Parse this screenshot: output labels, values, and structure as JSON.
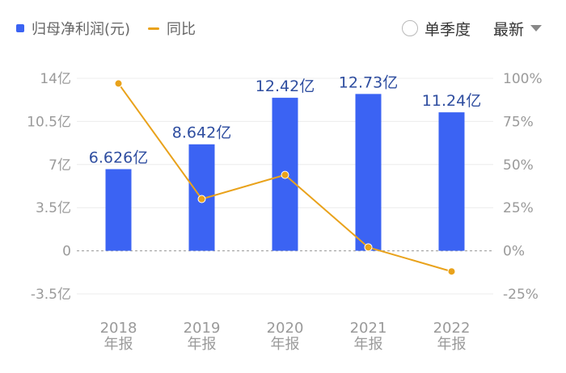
{
  "legend": {
    "bar_label": "归母净利润(元)",
    "line_label": "同比"
  },
  "controls": {
    "quarterly_label": "单季度",
    "latest_label": "最新"
  },
  "colors": {
    "bar": "#3b63f3",
    "line": "#e9a21b",
    "bar_label": "#2f4ea0",
    "axis_text": "#9a9a9a",
    "grid": "#ececec",
    "zero_line": "#a8a8a8"
  },
  "chart_data": {
    "type": "bar",
    "categories": [
      "2018\n年报",
      "2019\n年报",
      "2020\n年报",
      "2021\n年报",
      "2022\n年报"
    ],
    "series": [
      {
        "name": "归母净利润(元)",
        "type": "bar",
        "axis": "left",
        "values": [
          6.626,
          8.642,
          12.42,
          12.73,
          11.24
        ],
        "labels": [
          "6.626亿",
          "8.642亿",
          "12.42亿",
          "12.73亿",
          "11.24亿"
        ]
      },
      {
        "name": "同比",
        "type": "line",
        "axis": "right",
        "values": [
          97,
          30,
          44,
          2,
          -12
        ]
      }
    ],
    "y_left": {
      "range": [
        -3.5,
        14
      ],
      "ticks": [
        14,
        10.5,
        7,
        3.5,
        0,
        -3.5
      ],
      "tick_labels": [
        "14亿",
        "10.5亿",
        "7亿",
        "3.5亿",
        "0",
        "-3.5亿"
      ]
    },
    "y_right": {
      "range": [
        -25,
        100
      ],
      "ticks": [
        100,
        75,
        50,
        25,
        0,
        -25
      ],
      "tick_labels": [
        "100%",
        "75%",
        "50%",
        "25%",
        "0%",
        "-25%"
      ]
    },
    "grid": true,
    "legend_position": "top-left"
  }
}
